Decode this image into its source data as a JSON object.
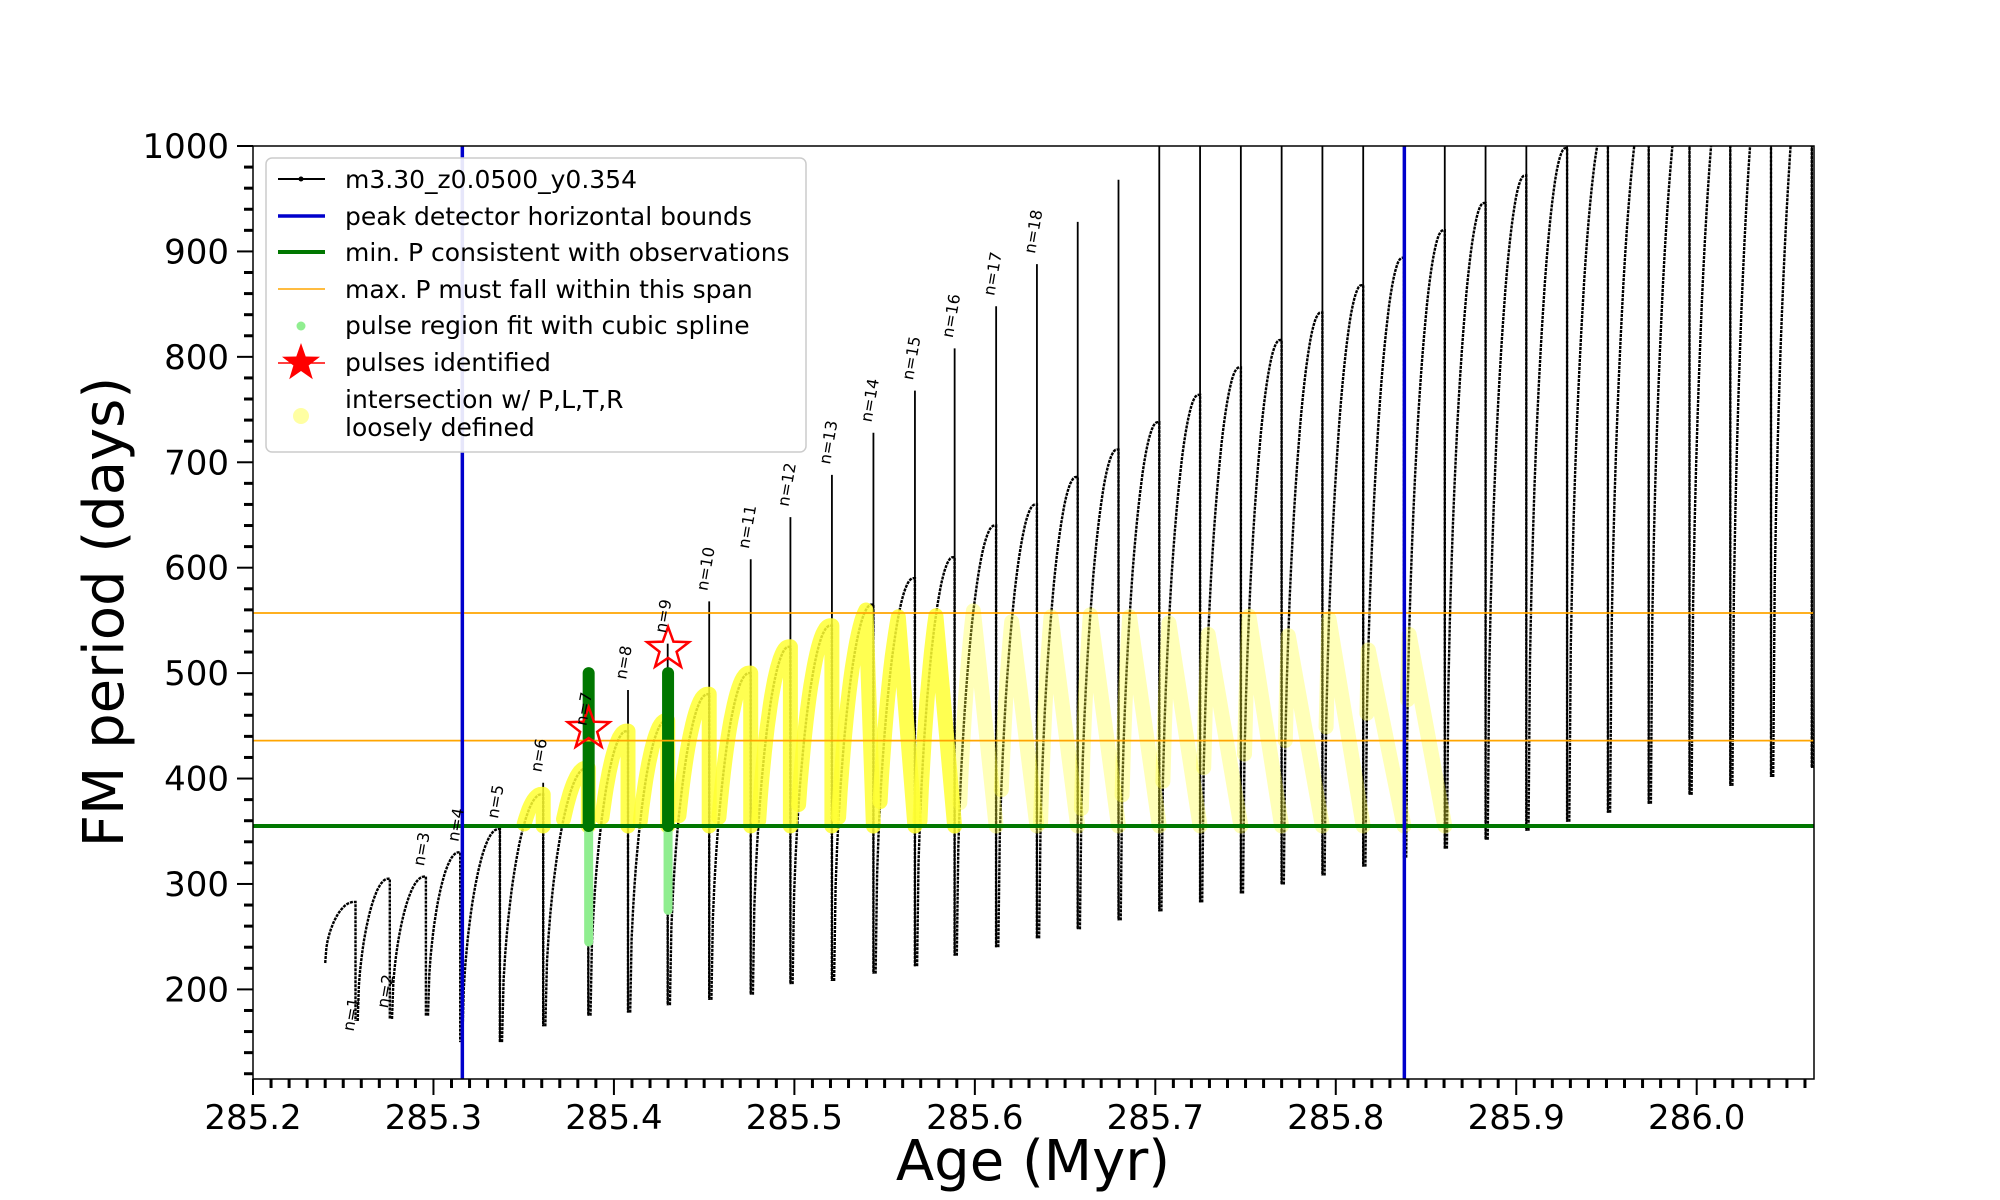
{
  "chart_data": {
    "type": "scatter",
    "xlabel": "Age (Myr)",
    "ylabel": "FM period (days)",
    "xlim": [
      285.2,
      286.065
    ],
    "ylim": [
      115,
      1000
    ],
    "x_ticks": [
      "285.2",
      "285.3",
      "285.4",
      "285.5",
      "285.6",
      "285.7",
      "285.8",
      "285.9",
      "286.0"
    ],
    "y_ticks": [
      "200",
      "300",
      "400",
      "500",
      "600",
      "700",
      "800",
      "900",
      "1000"
    ],
    "legend_position": "top-left",
    "legend": [
      {
        "label": "m3.30_z0.0500_y0.354",
        "color": "#000000",
        "marker": "line-dot"
      },
      {
        "label": "peak detector horizontal bounds",
        "color": "#0000cc",
        "marker": "line"
      },
      {
        "label": "min. P consistent with observations",
        "color": "#007700",
        "marker": "line"
      },
      {
        "label": "max. P must fall within this span",
        "color": "#ffa500",
        "marker": "thin-line"
      },
      {
        "label": "pulse region fit with cubic spline",
        "color": "#90ee90",
        "marker": "dot"
      },
      {
        "label": "pulses identified",
        "color": "#ff0000",
        "marker": "star"
      },
      {
        "label": "intersection w/ P,L,T,R",
        "label2": "loosely defined",
        "color": "#ffff66",
        "marker": "circle"
      }
    ],
    "vertical_bounds": [
      285.316,
      285.838
    ],
    "min_period": 355,
    "max_period_span": [
      436,
      557
    ],
    "pulses": [
      {
        "label": "n=1",
        "x": 285.24,
        "start": 225,
        "peak": 283,
        "end": 130
      },
      {
        "label": "n=2",
        "x": 285.258,
        "start": 170,
        "peak": 305,
        "end": 128
      },
      {
        "label": "n=3",
        "x": 285.277,
        "start": 172,
        "peak": 307,
        "end": 132
      },
      {
        "label": "n=4",
        "x": 285.297,
        "start": 175,
        "peak": 330,
        "end": 143
      },
      {
        "label": "n=5",
        "x": 285.316,
        "start": 150,
        "peak": 352,
        "end": 150
      },
      {
        "label": "n=6",
        "x": 285.338,
        "start": 150,
        "peak": 385,
        "end": 160
      },
      {
        "label": "n=7",
        "x": 285.362,
        "start": 165,
        "peak": 410,
        "end": 168
      },
      {
        "label": "n=8",
        "x": 285.387,
        "start": 175,
        "peak": 445,
        "end": 175
      },
      {
        "label": "n=9",
        "x": 285.409,
        "start": 178,
        "peak": 455,
        "end": 178
      },
      {
        "label": "n=10",
        "x": 285.431,
        "start": 185,
        "peak": 480,
        "end": 185
      },
      {
        "label": "n=11",
        "x": 285.454,
        "start": 190,
        "peak": 500,
        "end": 190
      },
      {
        "label": "n=12",
        "x": 285.477,
        "start": 195,
        "peak": 525,
        "end": 195
      },
      {
        "label": "n=13",
        "x": 285.499,
        "start": 205,
        "peak": 545,
        "end": 205
      },
      {
        "label": "n=14",
        "x": 285.522,
        "start": 208,
        "peak": 565,
        "end": 208
      },
      {
        "label": "n=15",
        "x": 285.545,
        "start": 215,
        "peak": 590,
        "end": 215
      },
      {
        "label": "n=16",
        "x": 285.568,
        "start": 222,
        "peak": 610,
        "end": 222
      },
      {
        "label": "n=17",
        "x": 285.59,
        "start": 232,
        "peak": 640,
        "end": 232
      },
      {
        "label": "n=18",
        "x": 285.613,
        "start": 240,
        "peak": 660,
        "end": 240
      }
    ],
    "pulse_count_after_labels": 27,
    "pulses_identified": [
      {
        "x": 285.386,
        "y": 447
      },
      {
        "x": 285.43,
        "y": 523
      }
    ]
  }
}
